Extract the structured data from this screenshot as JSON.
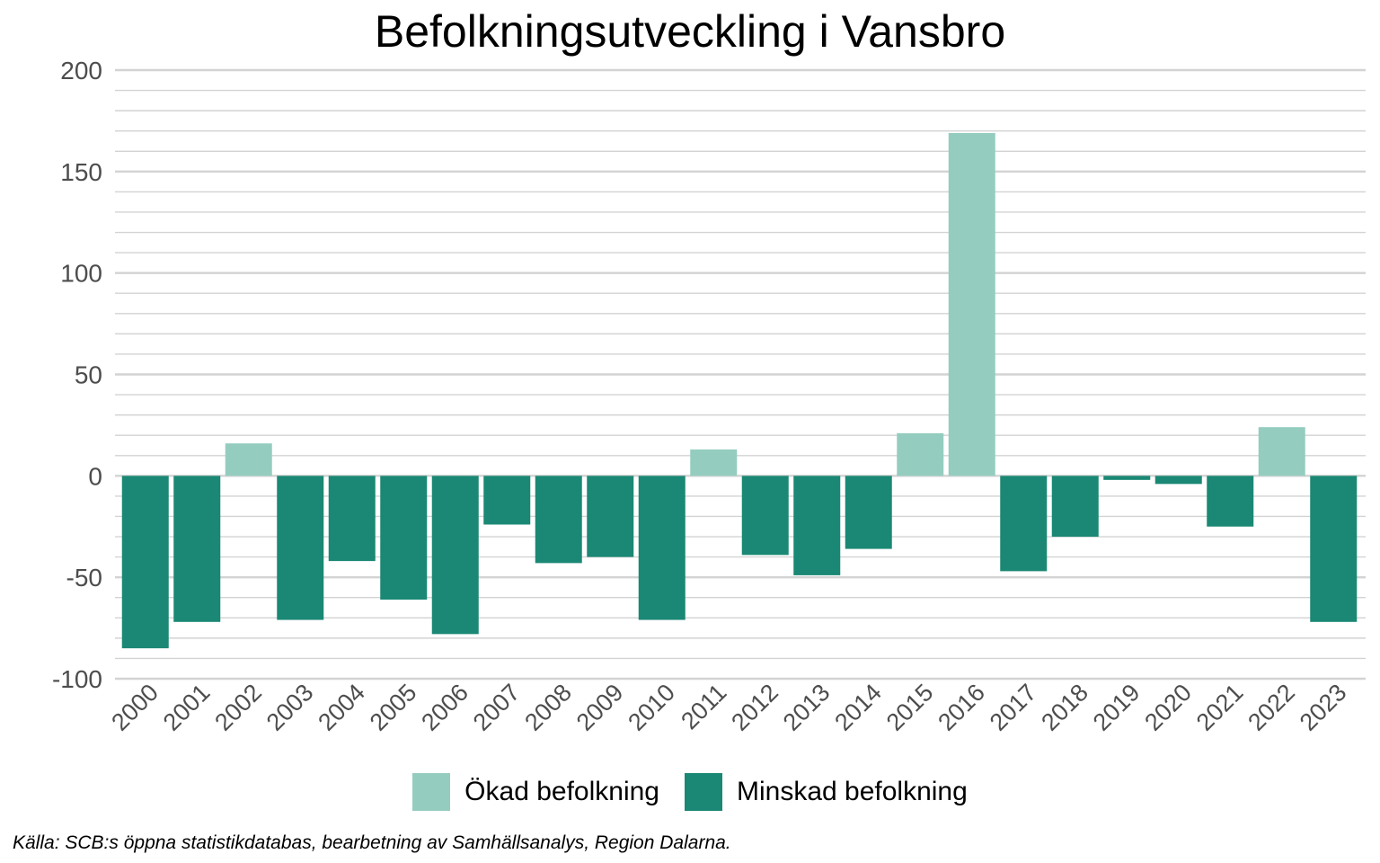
{
  "colors": {
    "increase": "#94cdbf",
    "decrease": "#1a8874",
    "grid": "#d3d3d3",
    "axis_text": "#4d4d4d"
  },
  "legend": {
    "increase_label": "Ökad befolkning",
    "decrease_label": "Minskad befolkning"
  },
  "source": "Källa: SCB:s öppna statistikdatabas, bearbetning av Samhällsanalys, Region Dalarna.",
  "chart_data": {
    "type": "bar",
    "title": "Befolkningsutveckling i Vansbro",
    "xlabel": "",
    "ylabel": "",
    "ylim": [
      -100,
      200
    ],
    "yticks": [
      -100,
      -50,
      0,
      50,
      100,
      150,
      200
    ],
    "minor_grid_step": 10,
    "grid": true,
    "legend_position": "bottom",
    "categories": [
      "2000",
      "2001",
      "2002",
      "2003",
      "2004",
      "2005",
      "2006",
      "2007",
      "2008",
      "2009",
      "2010",
      "2011",
      "2012",
      "2013",
      "2014",
      "2015",
      "2016",
      "2017",
      "2018",
      "2019",
      "2020",
      "2021",
      "2022",
      "2023"
    ],
    "values": [
      -85,
      -72,
      16,
      -71,
      -42,
      -61,
      -78,
      -24,
      -43,
      -40,
      -71,
      13,
      -39,
      -49,
      -36,
      21,
      169,
      -47,
      -30,
      -2,
      -4,
      -25,
      24,
      -72
    ],
    "series": [
      {
        "name": "Ökad befolkning",
        "rule": "value > 0"
      },
      {
        "name": "Minskad befolkning",
        "rule": "value < 0"
      }
    ]
  }
}
